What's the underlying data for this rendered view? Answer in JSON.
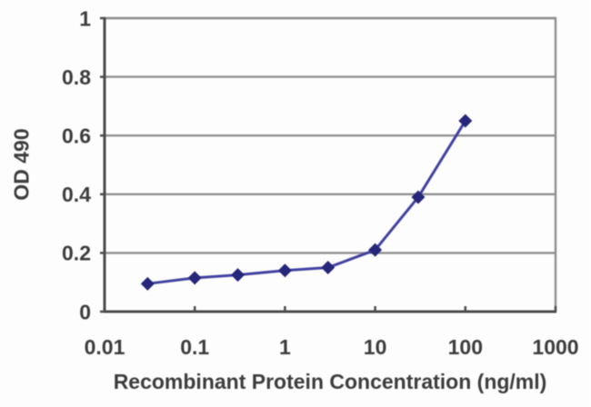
{
  "figure": {
    "description": "ELISA titration curve plot",
    "background_color": "#fdfdfd"
  },
  "chart_data": {
    "type": "line",
    "title": "",
    "xlabel": "Recombinant Protein Concentration (ng/ml)",
    "ylabel": "OD 490",
    "x_scale": "log",
    "xlim": [
      0.01,
      1000
    ],
    "ylim": [
      0,
      1
    ],
    "x_ticks": [
      0.01,
      0.1,
      1,
      10,
      100,
      1000
    ],
    "x_tick_labels": [
      "0.01",
      "0.1",
      "1",
      "10",
      "100",
      "1000"
    ],
    "y_ticks": [
      0,
      0.2,
      0.4,
      0.6,
      0.8,
      1
    ],
    "y_tick_labels": [
      "0",
      "0.2",
      "0.4",
      "0.6",
      "0.8",
      "1"
    ],
    "grid": "horizontal",
    "legend": "none",
    "series": [
      {
        "name": "OD 490 signal",
        "marker": "diamond",
        "x": [
          0.03,
          0.1,
          0.3,
          1,
          3,
          10,
          30,
          100
        ],
        "y": [
          0.095,
          0.115,
          0.125,
          0.14,
          0.15,
          0.21,
          0.39,
          0.65
        ]
      }
    ],
    "colors": {
      "line": "#4242a0",
      "marker": "#26267a",
      "gridline": "#8f8f8f",
      "plot_border": "#8f8f8f",
      "axis": "#4d4d4d",
      "tick_text": "#3d3d3d",
      "plot_background": "#fdfdfd"
    }
  }
}
